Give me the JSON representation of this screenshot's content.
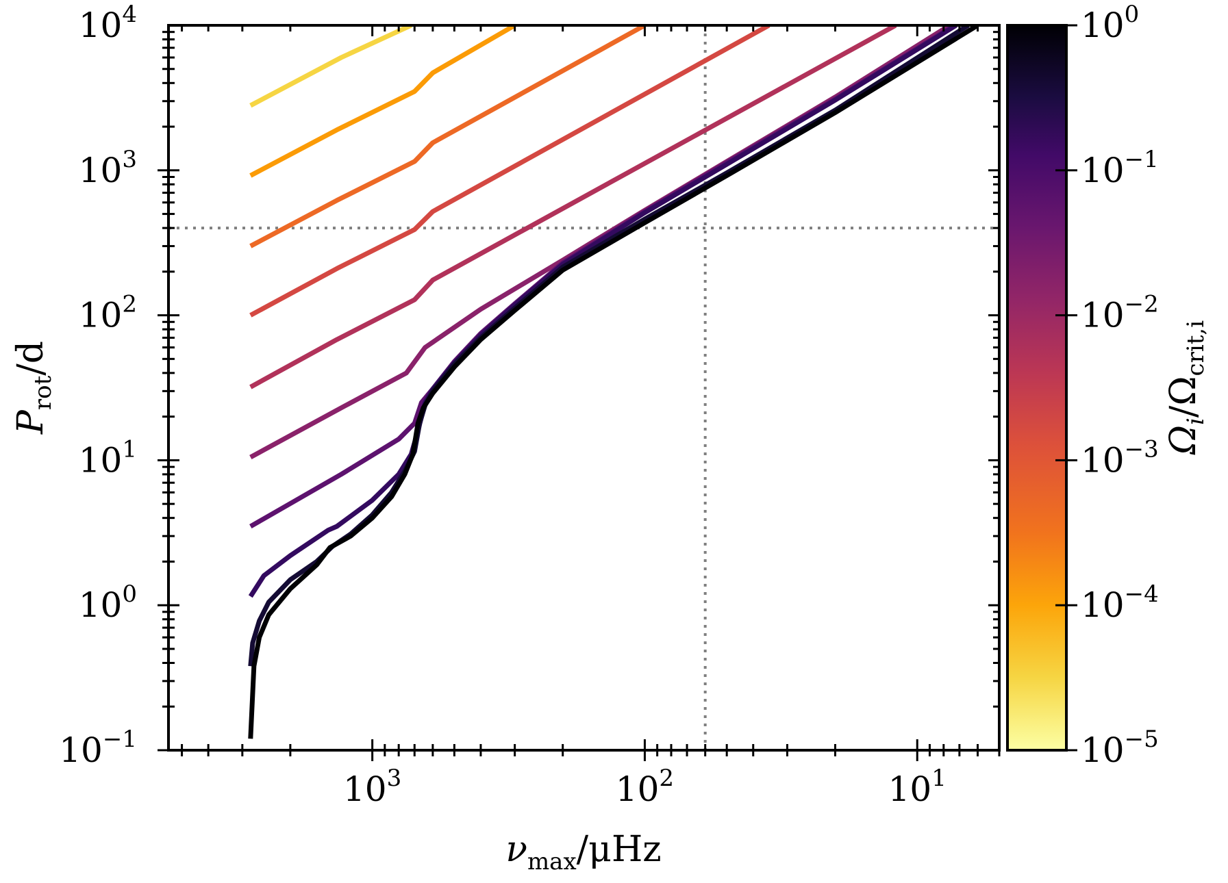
{
  "chart_data": {
    "type": "line",
    "xscale": "log",
    "yscale": "log",
    "x_reversed": true,
    "xlim": [
      5600,
      5.0
    ],
    "ylim": [
      0.1,
      10000
    ],
    "xlabel": {
      "symbol": "ν",
      "sub": "max",
      "unit": "/μHz"
    },
    "ylabel": {
      "symbol": "P",
      "sub": "rot",
      "unit": "/d"
    },
    "x_ticks": [
      {
        "base": "10",
        "exp": "3",
        "value": 1000
      },
      {
        "base": "10",
        "exp": "2",
        "value": 100
      },
      {
        "base": "10",
        "exp": "1",
        "value": 10
      }
    ],
    "y_ticks": [
      {
        "base": "10",
        "exp": "−1",
        "value": 0.1
      },
      {
        "base": "10",
        "exp": "0",
        "value": 1
      },
      {
        "base": "10",
        "exp": "1",
        "value": 10
      },
      {
        "base": "10",
        "exp": "2",
        "value": 100
      },
      {
        "base": "10",
        "exp": "3",
        "value": 1000
      },
      {
        "base": "10",
        "exp": "4",
        "value": 10000
      }
    ],
    "reference_lines": [
      {
        "orientation": "vertical",
        "x": 60,
        "style": "dotted",
        "color": "#7f7f7f"
      },
      {
        "orientation": "horizontal",
        "y": 400,
        "style": "dotted",
        "color": "#7f7f7f"
      }
    ],
    "colorbar": {
      "label": {
        "symbol": "Ω",
        "sub": "i",
        "sep": "/Ω",
        "sub2": "crit,i"
      },
      "scale": "log",
      "range": [
        1e-05,
        1
      ],
      "colormap": "inferno",
      "ticks": [
        {
          "base": "10",
          "exp": "0",
          "value": 1
        },
        {
          "base": "10",
          "exp": "−1",
          "value": 0.1
        },
        {
          "base": "10",
          "exp": "−2",
          "value": 0.01
        },
        {
          "base": "10",
          "exp": "−3",
          "value": 0.001
        },
        {
          "base": "10",
          "exp": "−4",
          "value": 0.0001
        },
        {
          "base": "10",
          "exp": "−5",
          "value": 1e-05
        }
      ]
    },
    "series": [
      {
        "name": "Ωi/Ωcrit,i = 3e-5",
        "color": "#f6d543",
        "points": [
          [
            2800,
            2800
          ],
          [
            1300,
            6000
          ],
          [
            720,
            10000
          ]
        ]
      },
      {
        "name": "Ωi/Ωcrit,i = 1e-4",
        "color": "#fb9b06",
        "points": [
          [
            2800,
            920
          ],
          [
            1350,
            1900
          ],
          [
            700,
            3500
          ],
          [
            600,
            4700
          ],
          [
            300,
            10000
          ]
        ]
      },
      {
        "name": "Ωi/Ωcrit,i = 3e-4",
        "color": "#ed6925",
        "points": [
          [
            2800,
            300
          ],
          [
            1350,
            620
          ],
          [
            700,
            1150
          ],
          [
            600,
            1550
          ],
          [
            100,
            10000
          ]
        ]
      },
      {
        "name": "Ωi/Ωcrit,i = 1e-3",
        "color": "#d44842",
        "points": [
          [
            2800,
            100
          ],
          [
            1350,
            210
          ],
          [
            700,
            390
          ],
          [
            600,
            520
          ],
          [
            35,
            10000
          ]
        ]
      },
      {
        "name": "Ωi/Ωcrit,i = 3e-3",
        "color": "#b1325a",
        "points": [
          [
            2800,
            32
          ],
          [
            1350,
            68
          ],
          [
            700,
            128
          ],
          [
            600,
            175
          ],
          [
            12,
            10000
          ]
        ]
      },
      {
        "name": "Ωi/Ωcrit,i = 1e-2",
        "color": "#8a226a",
        "points": [
          [
            2800,
            10.5
          ],
          [
            1300,
            23
          ],
          [
            750,
            40
          ],
          [
            640,
            60
          ],
          [
            400,
            110
          ],
          [
            200,
            240
          ],
          [
            100,
            530
          ],
          [
            50,
            1150
          ],
          [
            20,
            3200
          ],
          [
            7.6,
            10000
          ]
        ]
      },
      {
        "name": "Ωi/Ωcrit,i = 3e-2",
        "color": "#5d126e",
        "points": [
          [
            2800,
            3.5
          ],
          [
            1300,
            8
          ],
          [
            800,
            14
          ],
          [
            700,
            18
          ],
          [
            660,
            25
          ],
          [
            600,
            31
          ],
          [
            500,
            48
          ],
          [
            400,
            75
          ],
          [
            300,
            120
          ],
          [
            200,
            230
          ],
          [
            100,
            520
          ],
          [
            50,
            1130
          ],
          [
            20,
            3100
          ],
          [
            7.3,
            10000
          ]
        ]
      },
      {
        "name": "Ωi/Ωcrit,i = 1e-1",
        "color": "#330a5f",
        "points": [
          [
            2800,
            1.15
          ],
          [
            2500,
            1.6
          ],
          [
            2000,
            2.2
          ],
          [
            1450,
            3.3
          ],
          [
            1350,
            3.5
          ],
          [
            1000,
            5.3
          ],
          [
            800,
            8
          ],
          [
            720,
            11
          ],
          [
            680,
            16
          ],
          [
            640,
            25
          ],
          [
            600,
            31
          ],
          [
            500,
            47
          ],
          [
            400,
            73
          ],
          [
            300,
            118
          ],
          [
            200,
            225
          ],
          [
            100,
            510
          ],
          [
            50,
            1100
          ],
          [
            20,
            3050
          ],
          [
            7.2,
            10000
          ]
        ]
      },
      {
        "name": "Ωi/Ωcrit,i = 3e-1",
        "color": "#140b34",
        "points": [
          [
            2800,
            0.38
          ],
          [
            2750,
            0.55
          ],
          [
            2600,
            0.78
          ],
          [
            2400,
            1.05
          ],
          [
            2000,
            1.5
          ],
          [
            1600,
            2.0
          ],
          [
            1400,
            2.55
          ],
          [
            1200,
            3.1
          ],
          [
            1000,
            4.2
          ],
          [
            850,
            6
          ],
          [
            760,
            8.4
          ],
          [
            700,
            11.5
          ],
          [
            670,
            18
          ],
          [
            640,
            24
          ],
          [
            600,
            30
          ],
          [
            500,
            46
          ],
          [
            400,
            70
          ],
          [
            300,
            112
          ],
          [
            200,
            215
          ],
          [
            100,
            460
          ],
          [
            50,
            960
          ],
          [
            20,
            2600
          ],
          [
            6.5,
            10000
          ]
        ]
      },
      {
        "name": "Ωi/Ωcrit,i = 1",
        "color": "#000004",
        "points": [
          [
            2800,
            0.12
          ],
          [
            2720,
            0.38
          ],
          [
            2600,
            0.6
          ],
          [
            2400,
            0.86
          ],
          [
            2000,
            1.3
          ],
          [
            1600,
            1.9
          ],
          [
            1430,
            2.5
          ],
          [
            1200,
            3.0
          ],
          [
            1000,
            4.0
          ],
          [
            850,
            5.6
          ],
          [
            760,
            8
          ],
          [
            710,
            11
          ],
          [
            680,
            18
          ],
          [
            650,
            23
          ],
          [
            600,
            29
          ],
          [
            500,
            44
          ],
          [
            400,
            68
          ],
          [
            300,
            108
          ],
          [
            200,
            205
          ],
          [
            100,
            435
          ],
          [
            50,
            920
          ],
          [
            20,
            2500
          ],
          [
            6.0,
            10000
          ]
        ]
      }
    ]
  }
}
